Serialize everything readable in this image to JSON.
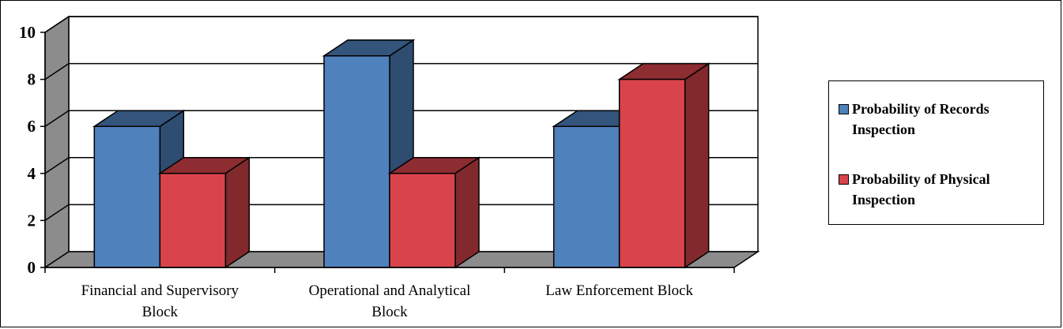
{
  "chart_data": {
    "type": "bar",
    "categories": [
      [
        "Financial and Supervisory",
        "Block"
      ],
      [
        "Operational and Analytical",
        "Block"
      ],
      [
        "Law Enforcement Block"
      ]
    ],
    "series": [
      {
        "name": "Probability of Records Inspection",
        "values": [
          6,
          9,
          6
        ],
        "color": "#4f81bd"
      },
      {
        "name": "Probability of Physical Inspection",
        "values": [
          4,
          4,
          8
        ],
        "color": "#d9444c"
      }
    ],
    "ylim": [
      0,
      10
    ],
    "yticks": [
      "0",
      "2",
      "4",
      "6",
      "8",
      "10"
    ],
    "grid": true,
    "legend": "right"
  }
}
